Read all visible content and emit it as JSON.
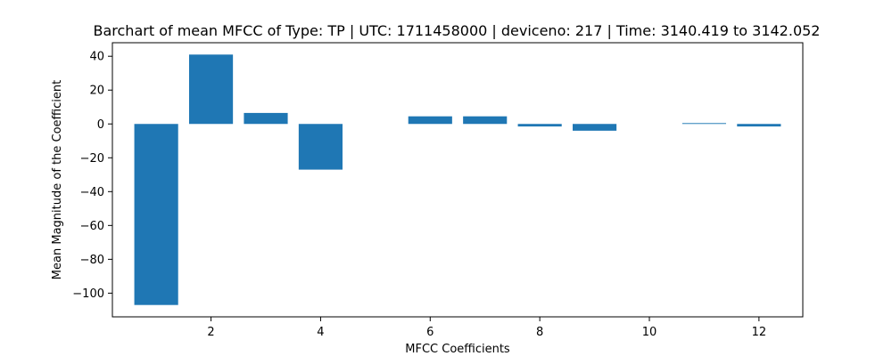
{
  "chart_data": {
    "type": "bar",
    "title": "Barchart of mean MFCC of Type: TP | UTC: 1711458000 | deviceno: 217 | Time: 3140.419 to 3142.052",
    "xlabel": "MFCC Coefficients",
    "ylabel": "Mean Magnitude of the Coefficient",
    "categories": [
      1,
      2,
      3,
      4,
      5,
      6,
      7,
      8,
      9,
      10,
      11,
      12
    ],
    "values": [
      -107,
      41,
      6.5,
      -27,
      0,
      4.5,
      4.5,
      -1.5,
      -4,
      0,
      0.5,
      -1.5
    ],
    "xlim": [
      0.2,
      12.8
    ],
    "ylim": [
      -114,
      48
    ],
    "xticks": [
      2,
      4,
      6,
      8,
      10,
      12
    ],
    "yticks": [
      40,
      20,
      0,
      -20,
      -40,
      -60,
      -80,
      -100
    ],
    "grid": false,
    "bar_color": "#1f77b4"
  }
}
